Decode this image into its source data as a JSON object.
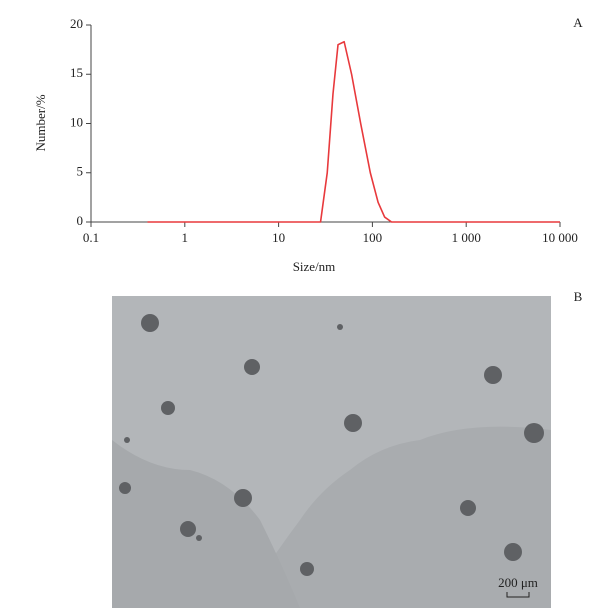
{
  "chart_data": {
    "type": "line",
    "annotation": "A",
    "x_label": "Size/nm",
    "y_label": "Number/%",
    "xscale": "log",
    "xlim": [
      0.1,
      10000
    ],
    "ylim": [
      0,
      20
    ],
    "xticks": [
      0.1,
      1,
      10,
      100,
      {
        "value": 1000,
        "label": "1 000"
      },
      {
        "value": 10000,
        "label": "10 000"
      }
    ],
    "yticks": [
      0,
      5,
      10,
      15,
      20
    ],
    "series": [
      {
        "color": "#e8393c",
        "x": [
          0.4,
          28,
          33,
          38,
          43,
          50,
          60,
          75,
          95,
          115,
          135,
          160,
          10000
        ],
        "values": [
          0,
          0,
          5,
          13,
          18,
          18.3,
          15,
          10,
          5,
          2,
          0.5,
          0,
          0
        ]
      }
    ]
  },
  "image": {
    "label": "B",
    "scale_bar": "200 μm"
  }
}
